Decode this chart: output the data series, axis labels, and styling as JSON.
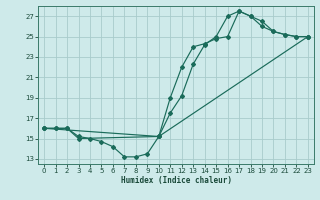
{
  "title": "",
  "xlabel": "Humidex (Indice chaleur)",
  "bg_color": "#ceeaea",
  "grid_color": "#a8cccc",
  "line_color": "#1a6b5a",
  "xlim": [
    -0.5,
    23.5
  ],
  "ylim": [
    12.5,
    28.0
  ],
  "xticks": [
    0,
    1,
    2,
    3,
    4,
    5,
    6,
    7,
    8,
    9,
    10,
    11,
    12,
    13,
    14,
    15,
    16,
    17,
    18,
    19,
    20,
    21,
    22,
    23
  ],
  "yticks": [
    13,
    15,
    17,
    19,
    21,
    23,
    25,
    27
  ],
  "line1_x": [
    0,
    1,
    2,
    3,
    4,
    5,
    6,
    7,
    8,
    9,
    10,
    11,
    12,
    13,
    14,
    15,
    16,
    17,
    18,
    19,
    20,
    21,
    22,
    23
  ],
  "line1_y": [
    16.0,
    16.0,
    16.0,
    15.2,
    15.0,
    14.7,
    14.2,
    13.2,
    13.2,
    13.5,
    15.2,
    17.5,
    19.2,
    22.3,
    24.2,
    25.0,
    27.0,
    27.5,
    27.0,
    26.0,
    25.5,
    25.2,
    25.0,
    25.0
  ],
  "line2_x": [
    0,
    1,
    2,
    3,
    10,
    11,
    12,
    13,
    14,
    15,
    16,
    17,
    18,
    19,
    20,
    21,
    22,
    23
  ],
  "line2_y": [
    16.0,
    16.0,
    16.0,
    15.0,
    15.2,
    19.0,
    22.0,
    24.0,
    24.3,
    24.8,
    25.0,
    27.5,
    27.0,
    26.5,
    25.5,
    25.2,
    25.0,
    25.0
  ],
  "line3_x": [
    0,
    10,
    23
  ],
  "line3_y": [
    16.0,
    15.2,
    25.0
  ]
}
